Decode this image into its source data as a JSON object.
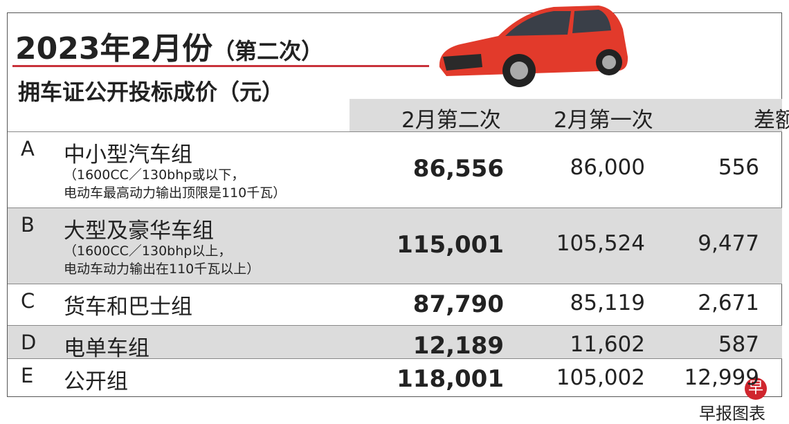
{
  "header": {
    "title": "2023年2月份",
    "title_suffix": "（第二次）",
    "subtitle": "拥车证公开投标成价（元）"
  },
  "table": {
    "columns": [
      "2月第二次",
      "2月第一次",
      "差额"
    ],
    "rows": [
      {
        "code": "A",
        "name": "中小型汽车组",
        "notes": [
          "（1600CC／130bhp或以下，",
          "电动车最高动力输出顶限是110千瓦）"
        ],
        "values": [
          "86,556",
          "86,000",
          "556"
        ]
      },
      {
        "code": "B",
        "name": "大型及豪华车组",
        "notes": [
          "（1600CC／130bhp以上，",
          "电动车动力输出在110千瓦以上）"
        ],
        "values": [
          "115,001",
          "105,524",
          "9,477"
        ]
      },
      {
        "code": "C",
        "name": "货车和巴士组",
        "notes": [],
        "values": [
          "87,790",
          "85,119",
          "2,671"
        ]
      },
      {
        "code": "D",
        "name": "电单车组",
        "notes": [],
        "values": [
          "12,189",
          "11,602",
          "587"
        ]
      },
      {
        "code": "E",
        "name": "公开组",
        "notes": [],
        "values": [
          "118,001",
          "105,002",
          "12,999"
        ]
      }
    ]
  },
  "footer": {
    "logo": "早",
    "source": "早报图表"
  }
}
